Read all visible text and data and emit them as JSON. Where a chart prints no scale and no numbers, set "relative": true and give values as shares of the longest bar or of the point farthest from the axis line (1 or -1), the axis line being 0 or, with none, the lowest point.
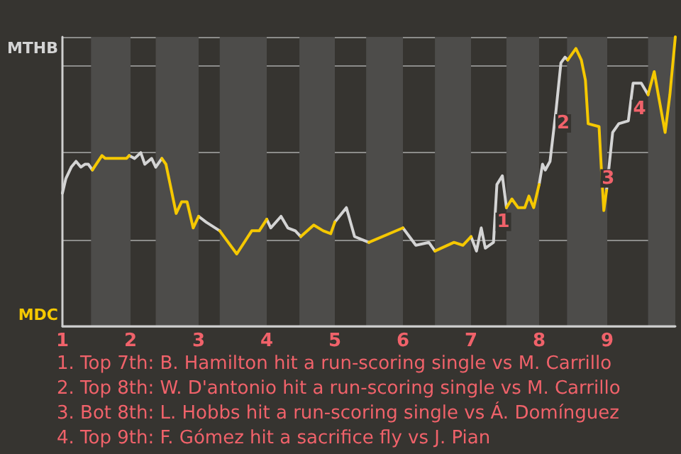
{
  "chart_data": {
    "type": "line",
    "relative": true,
    "xlim": [
      1,
      10
    ],
    "xticks": [
      1,
      2,
      3,
      4,
      5,
      6,
      7,
      8,
      9
    ],
    "grid": "y",
    "legend": "left",
    "marker": "none",
    "line_style": "solid",
    "series": [
      {
        "name": "MTHB",
        "color": "#d4d4d4",
        "x": [
          1,
          1.05,
          1.13,
          1.2,
          1.27,
          1.33,
          1.38,
          1.44,
          null,
          1.98,
          2.06,
          2.15,
          2.21,
          2.31,
          2.37,
          2.46,
          null,
          3,
          3.11,
          3.31,
          null,
          4,
          4.06,
          4.21,
          4.31,
          4.42,
          4.5,
          null,
          5,
          5.17,
          5.29,
          5.5,
          null,
          6,
          6.19,
          6.38,
          6.47,
          null,
          7,
          7.08,
          7.15,
          7.21,
          7.33,
          7.38,
          7.46,
          7.52,
          null,
          8,
          8.05,
          8.09,
          8.16,
          8.25,
          8.32,
          8.38,
          8.42,
          null,
          8.99,
          9.08,
          9.17,
          9.31,
          9.38,
          9.5,
          9.6
        ],
        "values": [
          0.46,
          0.51,
          0.55,
          0.57,
          0.55,
          0.56,
          0.56,
          0.54,
          null,
          0.59,
          0.58,
          0.6,
          0.56,
          0.58,
          0.55,
          0.58,
          null,
          0.38,
          0.36,
          0.33,
          null,
          0.37,
          0.34,
          0.38,
          0.34,
          0.33,
          0.31,
          null,
          0.36,
          0.41,
          0.31,
          0.29,
          null,
          0.34,
          0.28,
          0.29,
          0.26,
          null,
          0.31,
          0.26,
          0.34,
          0.27,
          0.29,
          0.49,
          0.52,
          0.41,
          null,
          0.49,
          0.56,
          0.54,
          0.57,
          0.75,
          0.91,
          0.93,
          0.92,
          null,
          0.47,
          0.67,
          0.7,
          0.71,
          0.84,
          0.84,
          0.8
        ]
      },
      {
        "name": "MDC",
        "color": "#f5c800",
        "x": [
          1.44,
          1.58,
          1.63,
          1.94,
          1.98,
          null,
          2.46,
          2.52,
          2.6,
          2.67,
          2.75,
          2.83,
          2.92,
          3,
          null,
          3.31,
          3.56,
          3.78,
          3.89,
          4,
          null,
          4.5,
          4.69,
          4.83,
          4.94,
          5,
          null,
          5.5,
          6,
          null,
          6.47,
          6.75,
          6.88,
          7,
          null,
          7.52,
          7.6,
          7.69,
          7.79,
          7.85,
          7.92,
          8,
          null,
          8.42,
          8.54,
          8.62,
          8.68,
          8.72,
          8.88,
          8.91,
          8.95,
          8.99,
          null,
          9.6,
          9.69,
          9.75,
          9.85,
          9.92,
          10
        ],
        "values": [
          0.54,
          0.59,
          0.58,
          0.58,
          0.59,
          null,
          0.58,
          0.56,
          0.47,
          0.39,
          0.43,
          0.43,
          0.34,
          0.38,
          null,
          0.33,
          0.25,
          0.33,
          0.33,
          0.37,
          null,
          0.31,
          0.35,
          0.33,
          0.32,
          0.36,
          null,
          0.29,
          0.34,
          null,
          0.26,
          0.29,
          0.28,
          0.31,
          null,
          0.41,
          0.44,
          0.41,
          0.41,
          0.45,
          0.41,
          0.49,
          null,
          0.92,
          0.96,
          0.92,
          0.85,
          0.7,
          0.69,
          0.56,
          0.4,
          0.47,
          null,
          0.8,
          0.88,
          0.8,
          0.67,
          0.8,
          1
        ]
      }
    ],
    "bands": [
      {
        "axis": "x",
        "from": 1.42,
        "to": 2,
        "color": "#4d4c4a"
      },
      {
        "axis": "x",
        "from": 2.37,
        "to": 3,
        "color": "#4d4c4a"
      },
      {
        "axis": "x",
        "from": 3.31,
        "to": 4,
        "color": "#4d4c4a"
      },
      {
        "axis": "x",
        "from": 4.48,
        "to": 5,
        "color": "#4d4c4a"
      },
      {
        "axis": "x",
        "from": 5.46,
        "to": 6,
        "color": "#4d4c4a"
      },
      {
        "axis": "x",
        "from": 6.47,
        "to": 7,
        "color": "#4d4c4a"
      },
      {
        "axis": "x",
        "from": 7.52,
        "to": 8,
        "color": "#4d4c4a"
      },
      {
        "axis": "x",
        "from": 8.41,
        "to": 9,
        "color": "#4d4c4a"
      },
      {
        "axis": "x",
        "from": 9.6,
        "to": 10,
        "color": "#4d4c4a"
      }
    ],
    "annotations": [
      {
        "text": "1",
        "x": 7.37,
        "y": 0.41
      },
      {
        "text": "2",
        "x": 8.25,
        "y": 0.75
      },
      {
        "text": "3",
        "x": 8.91,
        "y": 0.56
      },
      {
        "text": "4",
        "x": 9.37,
        "y": 0.8
      },
      "1. Top 7th: B. Hamilton hit a run-scoring single vs M. Carrillo",
      "2. Top 8th: W. D'antonio hit a run-scoring single vs M. Carrillo",
      "3. Bot 8th: L. Hobbs hit a run-scoring single vs Á. Domínguez",
      "4. Top 9th: F. Gómez hit a sacrifice fly vs J. Pian"
    ]
  }
}
